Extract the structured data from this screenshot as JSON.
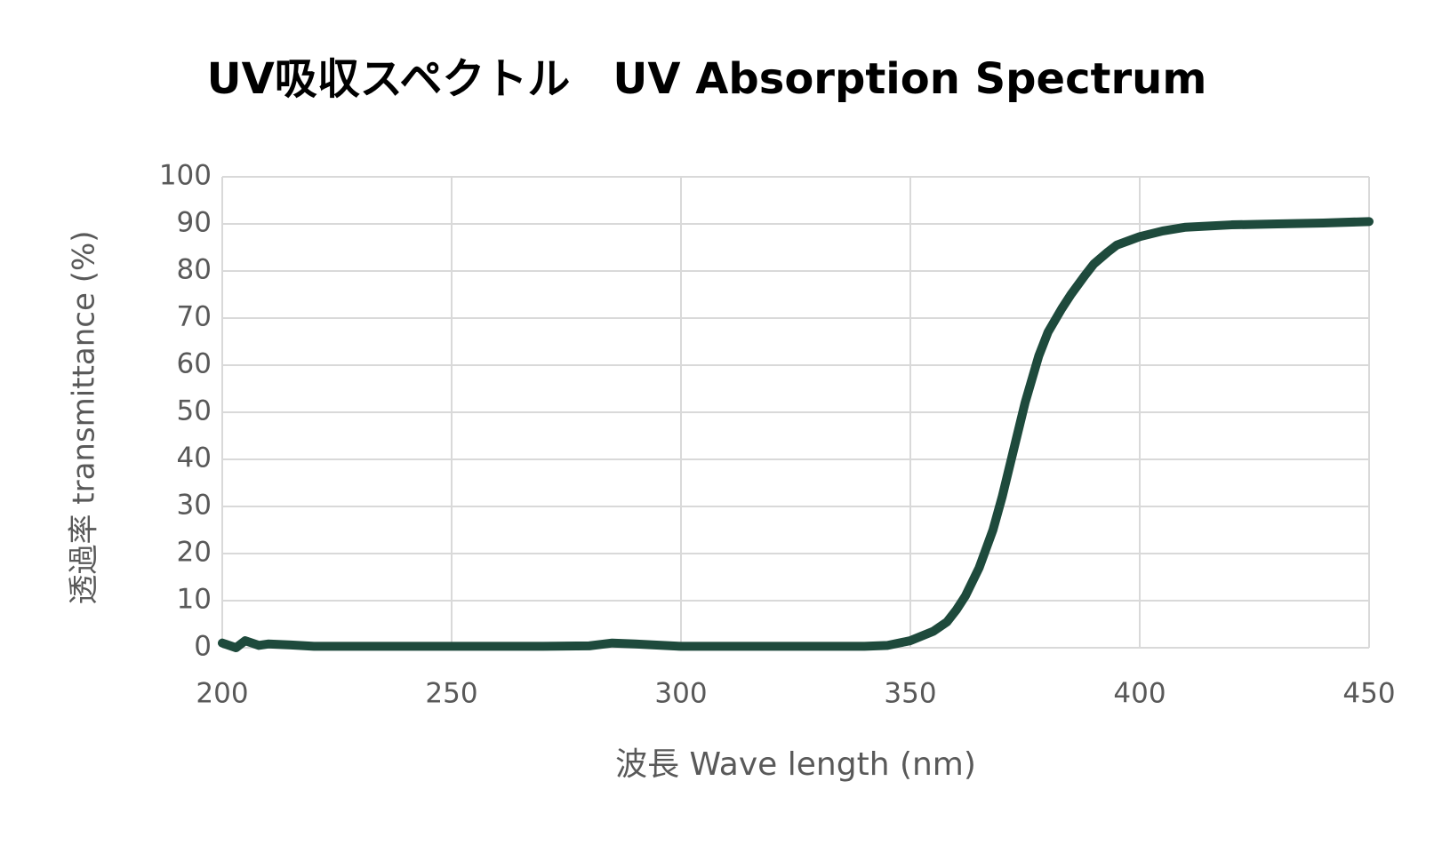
{
  "chart_data": {
    "type": "line",
    "title": "UV吸収スペクトル　UV Absorption Spectrum",
    "x_label": "波長 Wave length (nm)",
    "y_label": "透過率 transmittance (%)",
    "x": [
      200,
      203,
      205,
      208,
      210,
      215,
      220,
      230,
      240,
      250,
      260,
      270,
      280,
      285,
      290,
      300,
      310,
      320,
      330,
      340,
      345,
      350,
      355,
      358,
      360,
      362,
      365,
      368,
      370,
      372,
      375,
      378,
      380,
      383,
      385,
      388,
      390,
      393,
      395,
      400,
      405,
      410,
      420,
      430,
      440,
      450
    ],
    "series": [
      {
        "name": "transmittance",
        "color": "#1e4a3c",
        "values": [
          1,
          0,
          1.5,
          0.5,
          0.8,
          0.6,
          0.3,
          0.3,
          0.3,
          0.3,
          0.3,
          0.3,
          0.4,
          1,
          0.8,
          0.3,
          0.3,
          0.3,
          0.3,
          0.3,
          0.5,
          1.5,
          3.5,
          5.5,
          8,
          11,
          17,
          25,
          32,
          40,
          52,
          62,
          67,
          72,
          75,
          79,
          81.5,
          84,
          85.5,
          87.3,
          88.5,
          89.3,
          89.8,
          90,
          90.2,
          90.5
        ]
      }
    ],
    "xlim": [
      200,
      450
    ],
    "xticks": [
      200,
      250,
      300,
      350,
      400,
      450
    ],
    "ylim": [
      0,
      100
    ],
    "yticks": [
      0,
      10,
      20,
      30,
      40,
      50,
      60,
      70,
      80,
      90,
      100
    ],
    "grid": true
  }
}
